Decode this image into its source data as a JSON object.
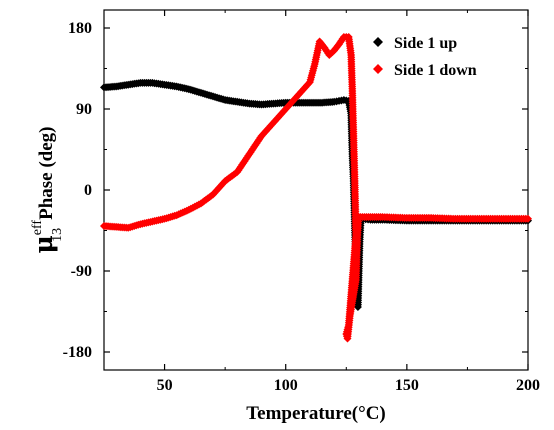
{
  "chart_data": {
    "type": "scatter",
    "xlabel": "Temperature(°C)",
    "ylabel": {
      "symbol": "μ",
      "superscript": "eff",
      "subscript": "13",
      "text": "Phase (deg)"
    },
    "xlim": [
      25,
      200
    ],
    "ylim": [
      -200,
      200
    ],
    "xticks": [
      50,
      100,
      150,
      200
    ],
    "yticks": [
      180,
      90,
      0,
      -90,
      -180
    ],
    "legend_position": "top-right",
    "grid": false,
    "marker": "diamond",
    "series": [
      {
        "name": "Side 1 up",
        "color": "#000000",
        "x": [
          25,
          30,
          35,
          40,
          45,
          50,
          55,
          60,
          65,
          70,
          75,
          80,
          85,
          90,
          95,
          100,
          105,
          110,
          115,
          120,
          124,
          126,
          127,
          127.5,
          128,
          128.3,
          128.6,
          128.9,
          129.2,
          129.5,
          129.8,
          130.1,
          130.5,
          131,
          135,
          140,
          150,
          160,
          170,
          180,
          190,
          200
        ],
        "y": [
          114,
          115,
          117,
          119,
          119,
          117,
          115,
          112,
          108,
          104,
          100,
          98,
          96,
          95,
          96,
          97,
          97,
          97,
          97,
          98,
          100,
          99,
          85,
          40,
          10,
          -20,
          -50,
          -80,
          -100,
          -120,
          -130,
          -100,
          -60,
          -32,
          -33,
          -33,
          -34,
          -34,
          -34,
          -34,
          -34,
          -34
        ]
      },
      {
        "name": "Side 1 down",
        "color": "#ff0000",
        "x": [
          25,
          30,
          35,
          40,
          45,
          50,
          55,
          60,
          65,
          70,
          75,
          80,
          85,
          90,
          95,
          100,
          105,
          110,
          112,
          114,
          116,
          118,
          120,
          122,
          124,
          126,
          127,
          127.5,
          128,
          128.5,
          129,
          126,
          125,
          125.5,
          126.5,
          129,
          129.5,
          130,
          135,
          140,
          150,
          160,
          170,
          180,
          190,
          200
        ],
        "y": [
          -40,
          -41,
          -42,
          -38,
          -35,
          -32,
          -28,
          -22,
          -15,
          -5,
          10,
          20,
          40,
          60,
          75,
          90,
          105,
          120,
          140,
          165,
          158,
          150,
          155,
          162,
          170,
          170,
          150,
          110,
          60,
          10,
          -50,
          -150,
          -160,
          -165,
          -140,
          -100,
          -60,
          -30,
          -30,
          -30,
          -31,
          -31,
          -32,
          -32,
          -32,
          -32
        ]
      }
    ]
  }
}
